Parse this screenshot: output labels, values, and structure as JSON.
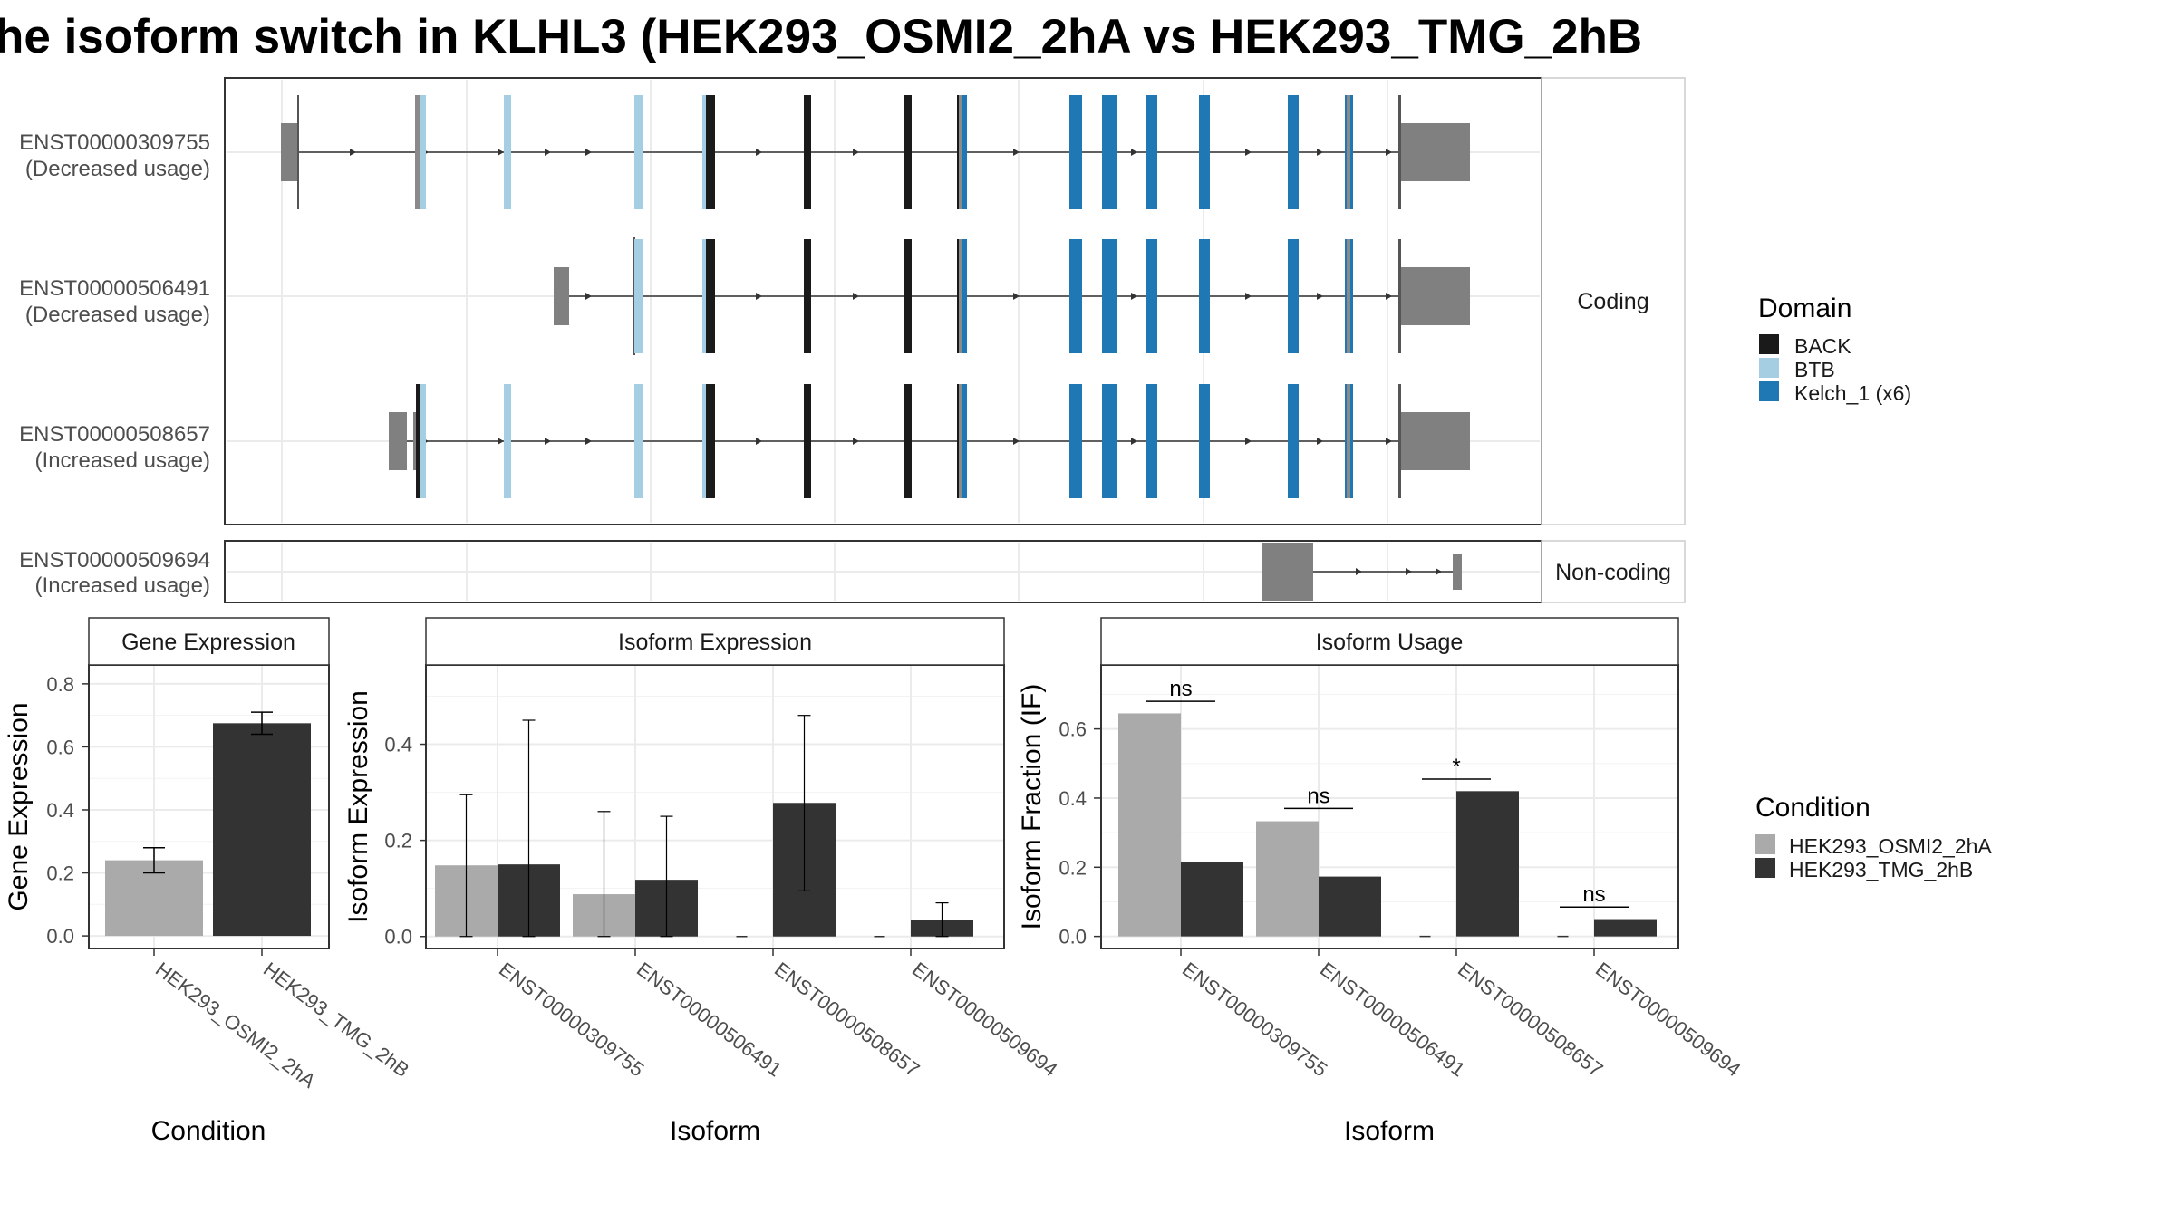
{
  "title": "he isoform switch in KLHL3 (HEK293_OSMI2_2hA vs HEK293_TMG_2hB",
  "colors": {
    "BACK": "#1a1a1a",
    "BTB": "#a6cee3",
    "Kelch_1 (x6)": "#1f78b4",
    "utr": "#808080",
    "HEK293_OSMI2_2hA": "#aaaaaa",
    "HEK293_TMG_2hB": "#333333"
  },
  "structure": {
    "coding_strip": "Coding",
    "noncoding_strip": "Non-coding",
    "transcripts": [
      {
        "id": "ENST00000309755",
        "usage": "(Decreased usage)",
        "group": "coding"
      },
      {
        "id": "ENST00000506491",
        "usage": "(Decreased usage)",
        "group": "coding"
      },
      {
        "id": "ENST00000508657",
        "usage": "(Increased usage)",
        "group": "coding"
      },
      {
        "id": "ENST00000509694",
        "usage": "(Increased usage)",
        "group": "noncoding"
      }
    ]
  },
  "legend_domain": {
    "title": "Domain",
    "items": [
      {
        "label": "BACK",
        "color": "#1a1a1a"
      },
      {
        "label": "BTB",
        "color": "#a6cee3"
      },
      {
        "label": "Kelch_1 (x6)",
        "color": "#1f78b4"
      }
    ]
  },
  "legend_condition": {
    "title": "Condition",
    "items": [
      {
        "label": "HEK293_OSMI2_2hA",
        "color": "#aaaaaa"
      },
      {
        "label": "HEK293_TMG_2hB",
        "color": "#333333"
      }
    ]
  },
  "chart_data": [
    {
      "type": "bar",
      "title": "Gene Expression",
      "xlabel": "Condition",
      "ylabel": "Gene Expression",
      "categories": [
        "HEK293_OSMI2_2hA",
        "HEK293_TMG_2hB"
      ],
      "values": [
        0.24,
        0.675
      ],
      "error_low": [
        0.2,
        0.64
      ],
      "error_high": [
        0.28,
        0.71
      ],
      "yticks": [
        "0.0",
        "0.2",
        "0.4",
        "0.6",
        "0.8"
      ],
      "ylim": [
        -0.04,
        0.86
      ],
      "grid": true
    },
    {
      "type": "bar",
      "title": "Isoform Expression",
      "xlabel": "Isoform",
      "ylabel": "Isoform Expression",
      "categories": [
        "ENST00000309755",
        "ENST00000506491",
        "ENST00000508657",
        "ENST00000509694"
      ],
      "series": [
        {
          "name": "HEK293_OSMI2_2hA",
          "values": [
            0.148,
            0.088,
            0.0,
            0.0
          ],
          "error_low": [
            0.0,
            0.0,
            0.0,
            0.0
          ],
          "error_high": [
            0.295,
            0.26,
            0.0,
            0.0
          ]
        },
        {
          "name": "HEK293_TMG_2hB",
          "values": [
            0.15,
            0.118,
            0.278,
            0.035
          ],
          "error_low": [
            0.0,
            0.0,
            0.095,
            0.0
          ],
          "error_high": [
            0.45,
            0.25,
            0.46,
            0.07
          ]
        }
      ],
      "yticks": [
        "0.0",
        "0.2",
        "0.4"
      ],
      "ylim": [
        -0.025,
        0.565
      ],
      "grid": true
    },
    {
      "type": "bar",
      "title": "Isoform Usage",
      "xlabel": "Isoform",
      "ylabel": "Isoform Fraction (IF)",
      "categories": [
        "ENST00000309755",
        "ENST00000506491",
        "ENST00000508657",
        "ENST00000509694"
      ],
      "series": [
        {
          "name": "HEK293_OSMI2_2hA",
          "values": [
            0.645,
            0.333,
            0.0,
            0.0
          ]
        },
        {
          "name": "HEK293_TMG_2hB",
          "values": [
            0.215,
            0.173,
            0.42,
            0.05
          ]
        }
      ],
      "significance": [
        {
          "label": "ns",
          "y": 0.68
        },
        {
          "label": "ns",
          "y": 0.37
        },
        {
          "label": "*",
          "y": 0.455
        },
        {
          "label": "ns",
          "y": 0.085
        }
      ],
      "yticks": [
        "0.0",
        "0.2",
        "0.4",
        "0.6"
      ],
      "ylim": [
        -0.035,
        0.785
      ],
      "grid": true
    }
  ]
}
